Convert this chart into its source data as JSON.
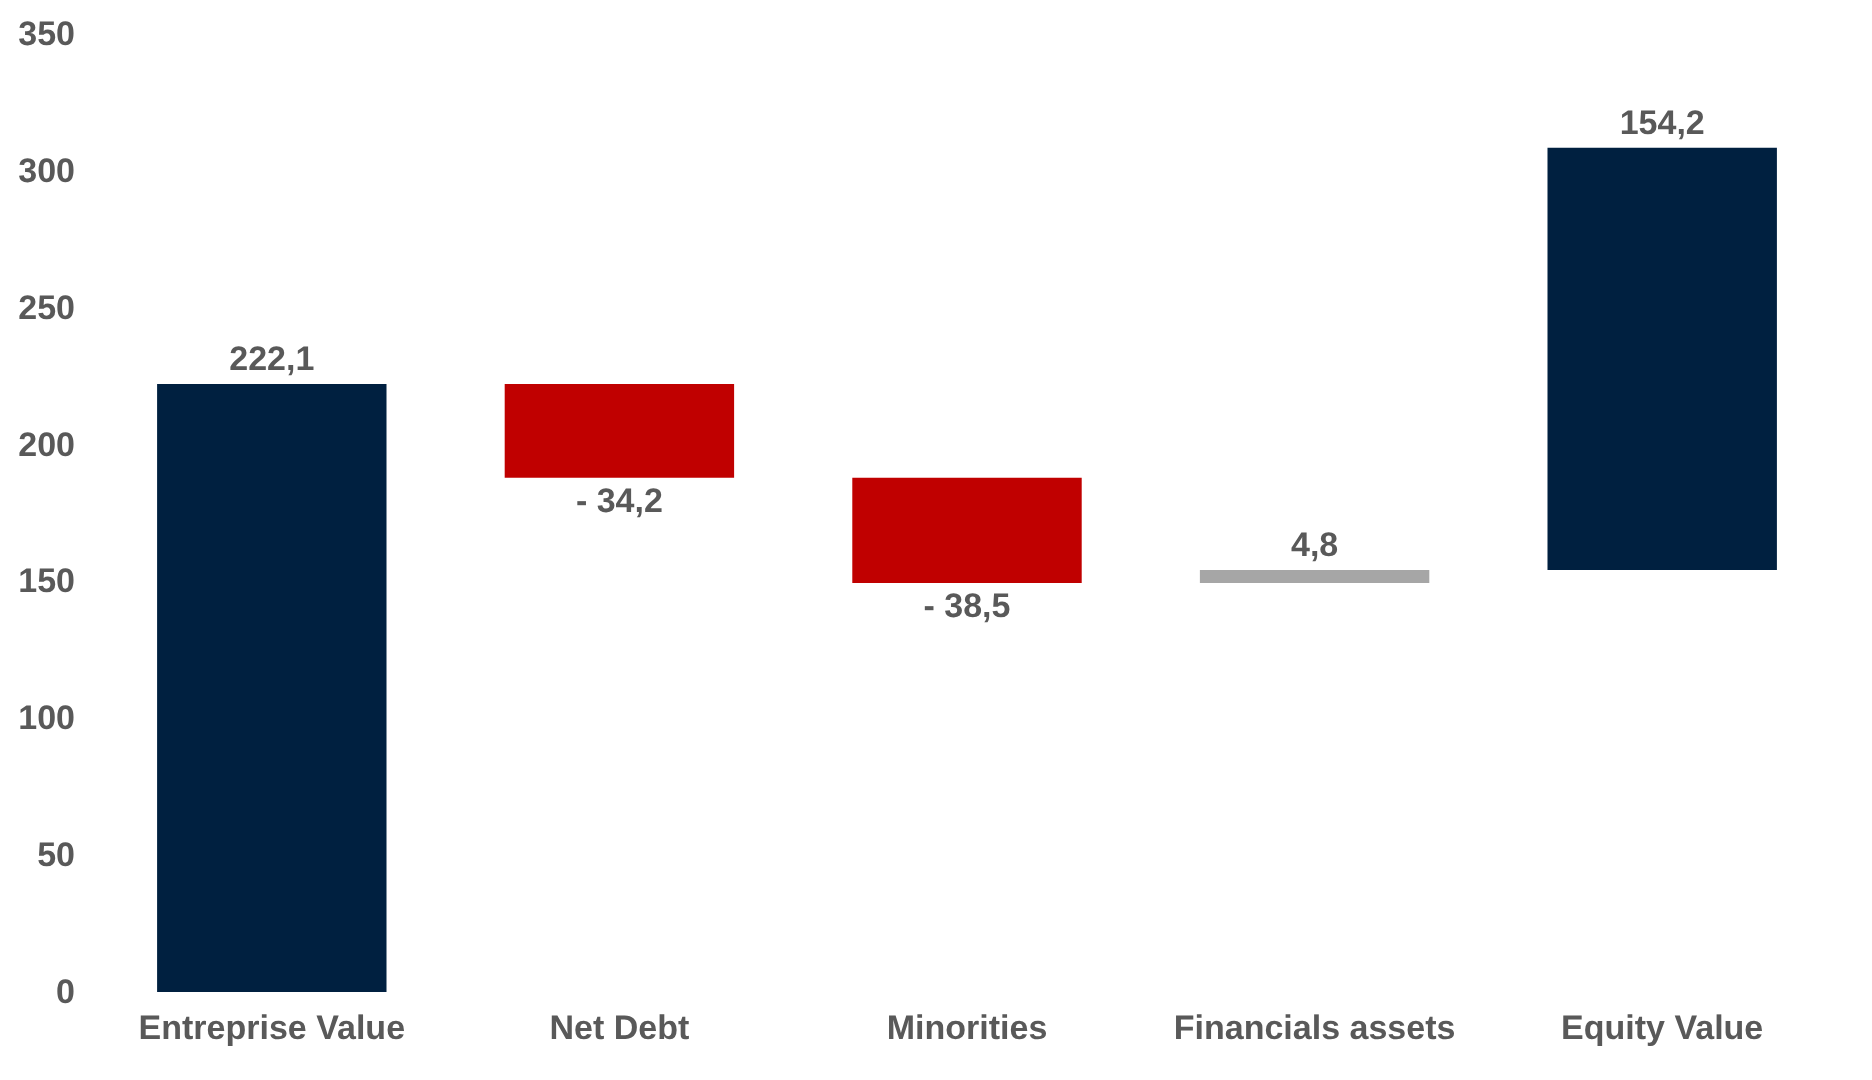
{
  "chart_data": {
    "type": "bar",
    "categories": [
      "Entreprise Value",
      "Net Debt",
      "Minorities",
      "Financials assets",
      "Equity Value"
    ],
    "values": [
      222.1,
      -34.2,
      -38.5,
      4.8,
      154.2
    ],
    "base": [
      0,
      222.1,
      187.9,
      149.4,
      154.2
    ],
    "colors": [
      "#002040",
      "#c00000",
      "#c00000",
      "#a6a6a6",
      "#002040"
    ],
    "value_labels": [
      "222,1",
      "- 34,2",
      "- 38,5",
      "4,8",
      "154,2"
    ],
    "ylim": [
      0,
      350
    ],
    "yticks": [
      0,
      50,
      100,
      150,
      200,
      250,
      300,
      350
    ],
    "grid": false
  }
}
